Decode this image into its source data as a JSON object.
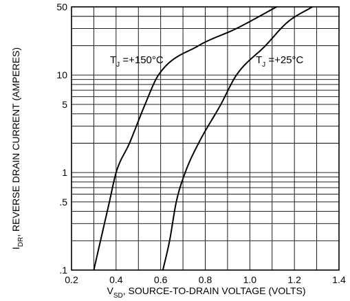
{
  "chart_data": {
    "type": "line",
    "x_scale": "linear",
    "y_scale": "log",
    "xlim": [
      0.2,
      1.4
    ],
    "ylim": [
      0.1,
      50
    ],
    "x_ticks": [
      {
        "value": 0.2,
        "label": "0.2"
      },
      {
        "value": 0.4,
        "label": "0.4"
      },
      {
        "value": 0.6,
        "label": "0.6"
      },
      {
        "value": 0.8,
        "label": "0.8"
      },
      {
        "value": 1.0,
        "label": "1.0"
      },
      {
        "value": 1.2,
        "label": "1.2"
      },
      {
        "value": 1.4,
        "label": "1.4"
      }
    ],
    "y_ticks": [
      {
        "value": 0.1,
        "label": ".1"
      },
      {
        "value": 0.5,
        "label": ".5"
      },
      {
        "value": 1,
        "label": "1"
      },
      {
        "value": 5,
        "label": "5"
      },
      {
        "value": 10,
        "label": "10"
      },
      {
        "value": 50,
        "label": "50"
      }
    ],
    "xlabel": {
      "main": "V",
      "sub": "SD",
      "rest": ", SOURCE-TO-DRAIN VOLTAGE (VOLTS)"
    },
    "ylabel": {
      "main": "I",
      "sub": "DR",
      "rest": ", REVERSE DRAIN CURRENT (AMPERES)"
    },
    "grid": true,
    "series": [
      {
        "name": "T_J = +150°C",
        "label": {
          "main": "T",
          "sub": "J",
          "rest": " =+150°C"
        },
        "points": [
          [
            0.3,
            0.1
          ],
          [
            0.33,
            0.2
          ],
          [
            0.37,
            0.5
          ],
          [
            0.4,
            1
          ],
          [
            0.46,
            2
          ],
          [
            0.53,
            5
          ],
          [
            0.59,
            10
          ],
          [
            0.77,
            20
          ],
          [
            0.94,
            30
          ],
          [
            1.12,
            50
          ]
        ]
      },
      {
        "name": "T_J = +25°C",
        "label": {
          "main": "T",
          "sub": "J",
          "rest": " =+25°C"
        },
        "points": [
          [
            0.61,
            0.1
          ],
          [
            0.64,
            0.2
          ],
          [
            0.67,
            0.5
          ],
          [
            0.71,
            1
          ],
          [
            0.77,
            2
          ],
          [
            0.87,
            5
          ],
          [
            0.94,
            10
          ],
          [
            1.07,
            20
          ],
          [
            1.17,
            35
          ],
          [
            1.28,
            50
          ]
        ]
      }
    ]
  }
}
